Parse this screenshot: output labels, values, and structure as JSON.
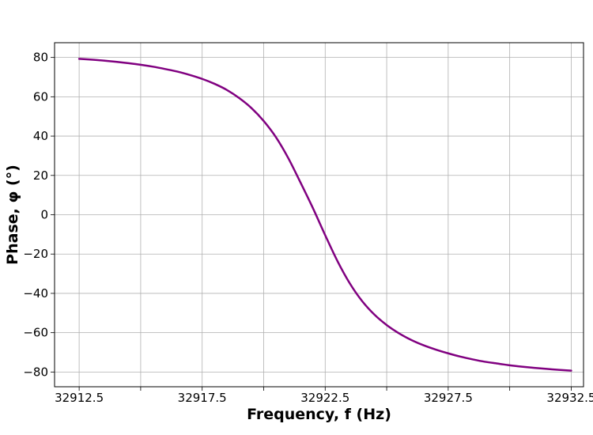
{
  "chart_data": {
    "type": "line",
    "title": "",
    "xlabel": "Frequency, f (Hz)",
    "ylabel": "Phase, φ (°)",
    "xlim": [
      32911.5,
      32933.0
    ],
    "ylim": [
      -87.5,
      87.5
    ],
    "x_major_ticks": [
      32912.5,
      32917.5,
      32922.5,
      32927.5,
      32932.5
    ],
    "x_major_tick_labels": [
      "32912.5",
      "32917.5",
      "32922.5",
      "32927.5",
      "32932.5"
    ],
    "x_minor_ticks": [
      32915.0,
      32920.0,
      32925.0,
      32930.0
    ],
    "y_ticks": [
      -80,
      -60,
      -40,
      -20,
      0,
      20,
      40,
      60,
      80
    ],
    "y_tick_labels": [
      "−80",
      "−60",
      "−40",
      "−20",
      "0",
      "20",
      "40",
      "60",
      "80"
    ],
    "grid": true,
    "legend": "none",
    "series": [
      {
        "color": "#800080",
        "x": [
          32912.5,
          32913.0,
          32913.5,
          32914.0,
          32914.5,
          32915.0,
          32915.5,
          32916.0,
          32916.5,
          32917.0,
          32917.5,
          32918.0,
          32918.5,
          32919.0,
          32919.5,
          32920.0,
          32920.5,
          32921.0,
          32921.5,
          32922.0,
          32922.5,
          32923.0,
          32923.5,
          32924.0,
          32924.5,
          32925.0,
          32925.5,
          32926.0,
          32926.5,
          32927.0,
          32927.5,
          32928.0,
          32928.5,
          32929.0,
          32929.5,
          32930.0,
          32930.5,
          32931.0,
          32931.5,
          32932.0,
          32932.5
        ],
        "y": [
          79.3,
          78.9,
          78.4,
          77.8,
          77.1,
          76.3,
          75.3,
          74.1,
          72.8,
          71.1,
          69.1,
          66.6,
          63.5,
          59.4,
          54.3,
          47.7,
          39.4,
          28.8,
          16.3,
          3.4,
          -10.4,
          -23.6,
          -34.9,
          -43.9,
          -50.8,
          -56.1,
          -60.3,
          -63.7,
          -66.4,
          -68.6,
          -70.5,
          -72.2,
          -73.6,
          -74.8,
          -75.7,
          -76.6,
          -77.3,
          -77.9,
          -78.4,
          -78.9,
          -79.3
        ]
      }
    ]
  }
}
